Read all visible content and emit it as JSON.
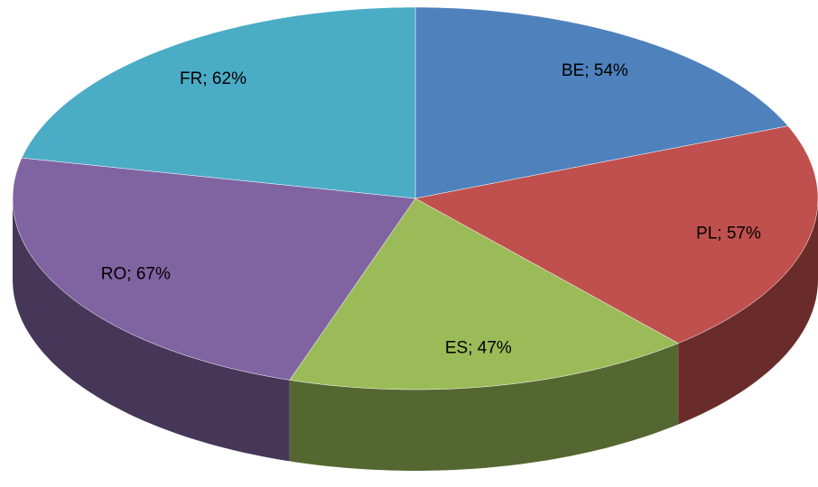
{
  "chart_data": {
    "type": "pie3d",
    "categories": [
      "BE",
      "PL",
      "ES",
      "RO",
      "FR"
    ],
    "values": [
      54,
      57,
      47,
      67,
      62
    ],
    "value_labels": [
      "BE; 54%",
      "PL; 57%",
      "ES; 47%",
      "RO; 67%",
      "FR; 62%"
    ],
    "colors": [
      "#4f81bd",
      "#c0504d",
      "#9bbb59",
      "#8064a2",
      "#4bacc6"
    ]
  }
}
